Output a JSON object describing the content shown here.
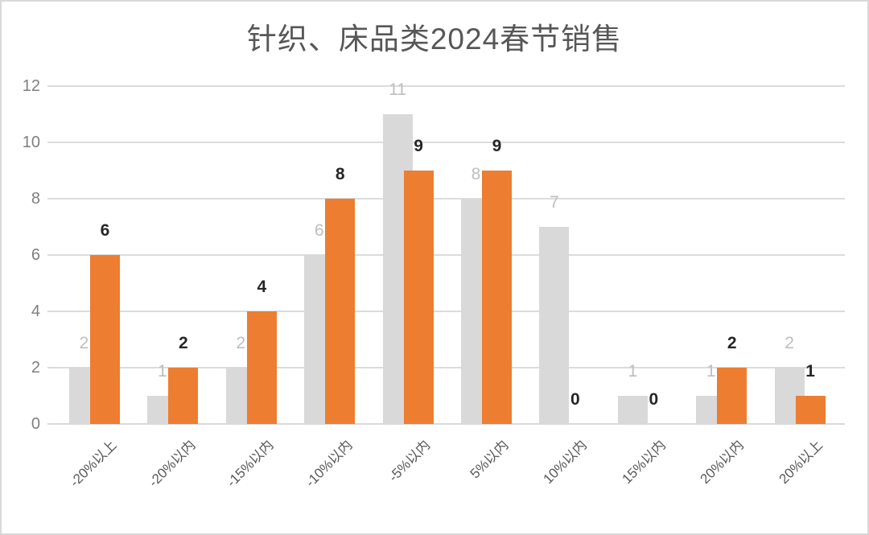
{
  "chart_data": {
    "type": "bar",
    "title": "针织、床品类2024春节销售",
    "categories": [
      "-20%以上",
      "-20%以内",
      "-15%以内",
      "-10%以内",
      "-5%以内",
      "5%以内",
      "10%以内",
      "15%以内",
      "20%以内",
      "20%以上"
    ],
    "series": [
      {
        "values": [
          2,
          1,
          2,
          6,
          11,
          8,
          7,
          1,
          1,
          2
        ],
        "bar_color": "#D9D9D9",
        "label_color": "#BEBEBE",
        "label_weight": "normal"
      },
      {
        "values": [
          6,
          2,
          4,
          8,
          9,
          9,
          0,
          0,
          2,
          1
        ],
        "bar_color": "#ED7D31",
        "label_color": "#262626",
        "label_weight": "bold"
      }
    ],
    "y_ticks": [
      0,
      2,
      4,
      6,
      8,
      10,
      12
    ],
    "ylim": [
      0,
      12
    ],
    "grid": true,
    "legend": "none",
    "data_labels": "outside-end",
    "colors": {
      "gridline": "#DCDCDC",
      "axis_line": "#D9D9D9",
      "tick_text": "#7F7F7F",
      "category_text": "#595959",
      "title_text": "#575757",
      "background": "#FFFFFF",
      "border": "#D9D9D9"
    }
  }
}
